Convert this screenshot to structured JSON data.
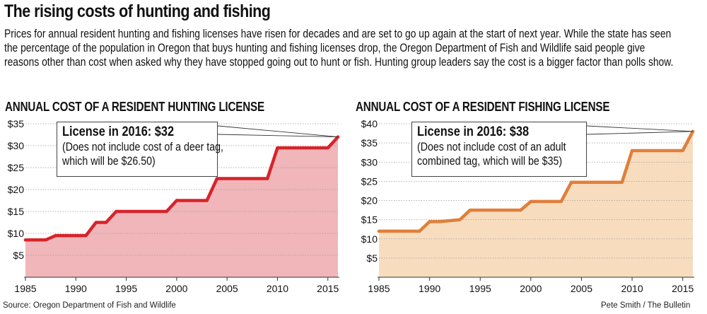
{
  "headline": "The rising costs of hunting and fishing",
  "intro": "Prices for annual resident hunting and fishing licenses have risen for decades and are set to go up again at the start of next year. While the state has seen the percentage of the population in Oregon that buys hunting and fishing licenses drop, the Oregon Department of Fish and Wildlife said people give reasons other than cost when asked why they have stopped going out to hunt or fish. Hunting group leaders say the cost is a bigger factor than polls show.",
  "source": "Source: Oregon Department of Fish and Wildlife",
  "credit": "Pete Smith / The Bulletin",
  "chart_data": [
    {
      "id": "hunting",
      "type": "area",
      "title": "ANNUAL COST OF A RESIDENT HUNTING LICENSE",
      "callout_head": "License in 2016: $32",
      "callout_note": "(Does not include cost of a deer tag, which will be $26.50)",
      "xlim": [
        1985,
        2016
      ],
      "ylim": [
        0,
        35
      ],
      "yticks": [
        5,
        10,
        15,
        20,
        25,
        30,
        35
      ],
      "ytick_labels": [
        "$5",
        "$10",
        "$15",
        "$20",
        "$25",
        "$30",
        "$35"
      ],
      "xticks": [
        1985,
        1990,
        1995,
        2000,
        2005,
        2010,
        2015
      ],
      "line_color": "#d8232a",
      "fill_color": "#f0b6b9",
      "x": [
        1985,
        1987,
        1988,
        1991,
        1992,
        1993,
        1994,
        1999,
        2000,
        2003,
        2004,
        2009,
        2010,
        2015,
        2016
      ],
      "y": [
        8.5,
        8.5,
        9.5,
        9.5,
        12.5,
        12.5,
        15,
        15,
        17.5,
        17.5,
        22.5,
        22.5,
        29.5,
        29.5,
        32
      ]
    },
    {
      "id": "fishing",
      "type": "area",
      "title": "ANNUAL COST OF A RESIDENT FISHING LICENSE",
      "callout_head": "License in 2016: $38",
      "callout_note": "(Does not include cost of an adult combined tag, which will be $35)",
      "xlim": [
        1985,
        2016
      ],
      "ylim": [
        0,
        40
      ],
      "yticks": [
        5,
        10,
        15,
        20,
        25,
        30,
        35,
        40
      ],
      "ytick_labels": [
        "$5",
        "$10",
        "$15",
        "$20",
        "$25",
        "$30",
        "$35",
        "$40"
      ],
      "xticks": [
        1985,
        1990,
        1995,
        2000,
        2005,
        2010,
        2015
      ],
      "line_color": "#e07f3a",
      "fill_color": "#f8dcbe",
      "x": [
        1985,
        1989,
        1990,
        1991,
        1993,
        1994,
        1999,
        2000,
        2002,
        2003,
        2004,
        2006,
        2009,
        2010,
        2015,
        2016
      ],
      "y": [
        12,
        12,
        14.5,
        14.5,
        15,
        17.5,
        17.5,
        19.75,
        19.75,
        19.75,
        24.75,
        24.75,
        24.75,
        33,
        33,
        38
      ]
    }
  ]
}
